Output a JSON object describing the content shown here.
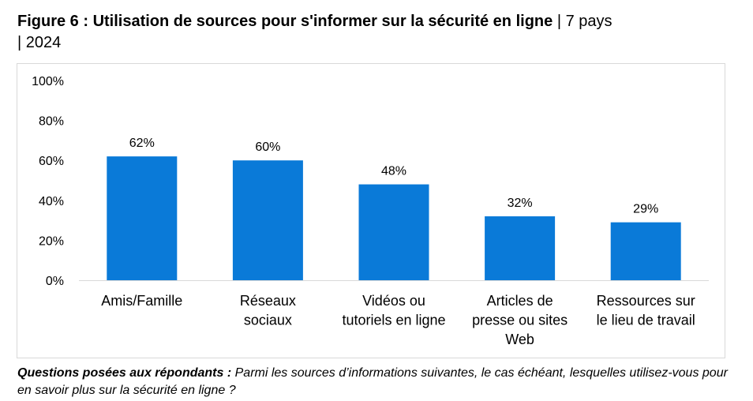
{
  "header": {
    "title_bold": "Figure 6 : Utilisation de sources pour s'informer sur la sécurité en ligne",
    "title_meta_1": "| 7 pays",
    "title_meta_2": "| 2024"
  },
  "footnote": {
    "label": "Questions posées aux répondants :",
    "text": "Parmi les sources d’informations suivantes, le cas échéant, lesquelles utilisez-vous pour en savoir plus sur la sécurité en ligne ?"
  },
  "colors": {
    "bar": "#0a7ad8",
    "axis": "#d9d9d9"
  },
  "chart_data": {
    "type": "bar",
    "categories": [
      [
        "Amis/Famille"
      ],
      [
        "Réseaux",
        "sociaux"
      ],
      [
        "Vidéos ou",
        "tutoriels en ligne"
      ],
      [
        "Articles de",
        "presse ou sites",
        "Web"
      ],
      [
        "Ressources sur",
        "le lieu de travail"
      ]
    ],
    "values": [
      62,
      60,
      48,
      32,
      29
    ],
    "data_labels": [
      "62%",
      "60%",
      "48%",
      "32%",
      "29%"
    ],
    "ylim": [
      0,
      100
    ],
    "yticks": [
      0,
      20,
      40,
      60,
      80,
      100
    ],
    "ytick_labels": [
      "0%",
      "20%",
      "40%",
      "60%",
      "80%",
      "100%"
    ],
    "grid": false,
    "legend": "none"
  }
}
